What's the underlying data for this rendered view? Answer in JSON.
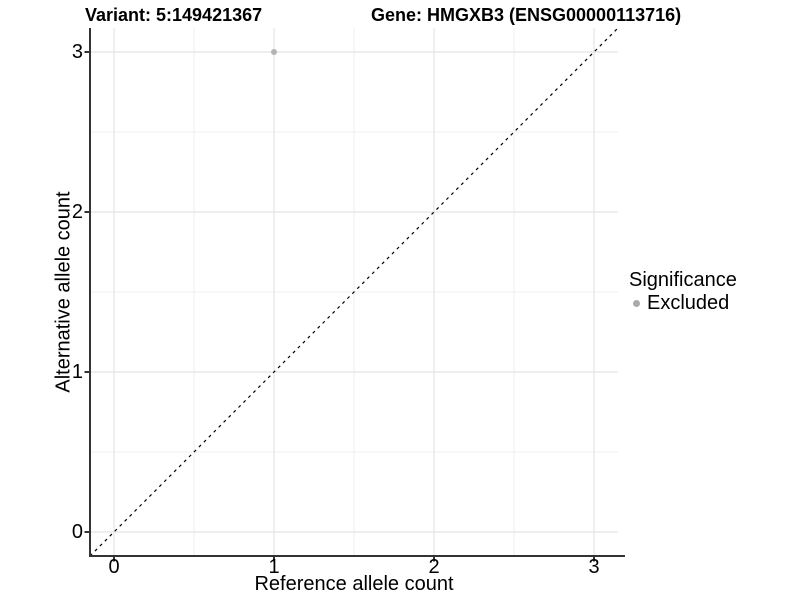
{
  "chart_data": {
    "type": "scatter",
    "titles": {
      "left": "Variant: 5:149421367",
      "right": "Gene: HMGXB3 (ENSG00000113716)"
    },
    "xlabel": "Reference allele count",
    "ylabel": "Alternative allele count",
    "xlim": [
      -0.15,
      3.15
    ],
    "ylim": [
      -0.15,
      3.15
    ],
    "x_ticks": [
      0,
      1,
      2,
      3
    ],
    "y_ticks": [
      0,
      1,
      2,
      3
    ],
    "x_minor_ticks": [
      0.5,
      1.5,
      2.5
    ],
    "y_minor_ticks": [
      0.5,
      1.5,
      2.5
    ],
    "grid": "major and minor gridlines on white panel",
    "reference_line": {
      "type": "identity",
      "style": "dashed",
      "from": [
        -0.15,
        -0.15
      ],
      "to": [
        3.15,
        3.15
      ],
      "color": "#000000"
    },
    "points": [
      {
        "x": 1,
        "y": 3,
        "significance": "Excluded",
        "color": "#b3b3b3"
      }
    ],
    "legend": {
      "title": "Significance",
      "position": "right",
      "items": [
        {
          "label": "Excluded",
          "color": "#aaaaaa"
        }
      ]
    },
    "colors": {
      "grid_major": "#e4e4e4",
      "grid_minor": "#efefef",
      "axis_line": "#333333",
      "text": "#000000",
      "panel_bg": "#ffffff"
    }
  }
}
